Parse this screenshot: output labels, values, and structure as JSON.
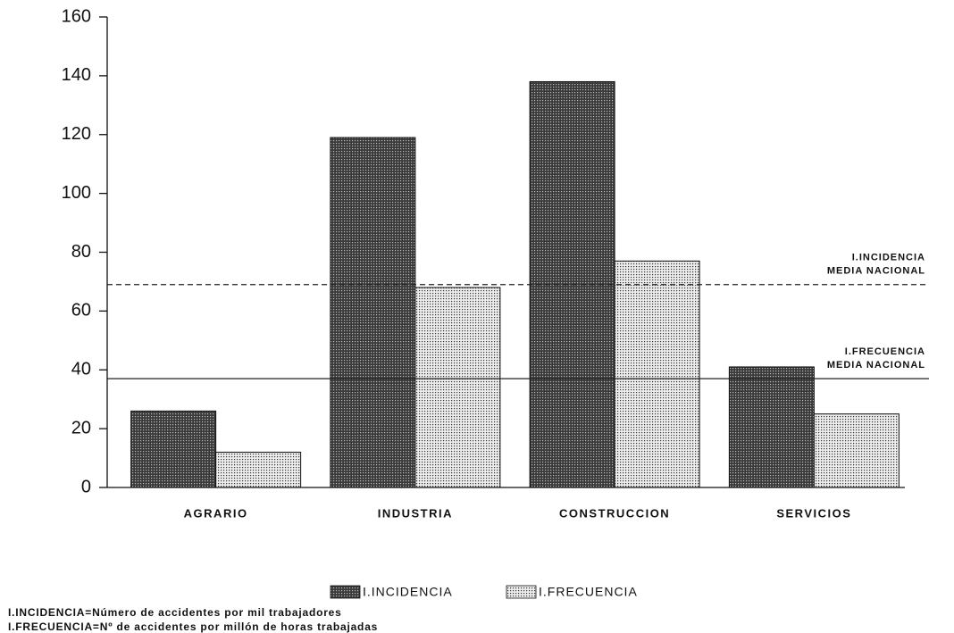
{
  "chart_data": {
    "type": "bar",
    "categories": [
      "AGRARIO",
      "INDUSTRIA",
      "CONSTRUCCION",
      "SERVICIOS"
    ],
    "series": [
      {
        "name": "I.INCIDENCIA",
        "color": "#3a3a3a",
        "values": [
          26,
          119,
          138,
          41
        ]
      },
      {
        "name": "I.FRECUENCIA",
        "color": "#ececec",
        "values": [
          12,
          68,
          77,
          25
        ]
      }
    ],
    "ylim": [
      0,
      160
    ],
    "yticks": [
      0,
      20,
      40,
      60,
      80,
      100,
      120,
      140,
      160
    ],
    "reference_lines": [
      {
        "value": 69,
        "style": "dashed",
        "label": [
          "I.INCIDENCIA",
          "MEDIA NACIONAL"
        ]
      },
      {
        "value": 37,
        "style": "solid",
        "label": [
          "I.FRECUENCIA",
          "MEDIA NACIONAL"
        ]
      }
    ],
    "notes": [
      "I.INCIDENCIA=Número de accidentes por mil trabajadores",
      "I.FRECUENCIA=Nº de accidentes por millón de horas trabajadas"
    ]
  }
}
